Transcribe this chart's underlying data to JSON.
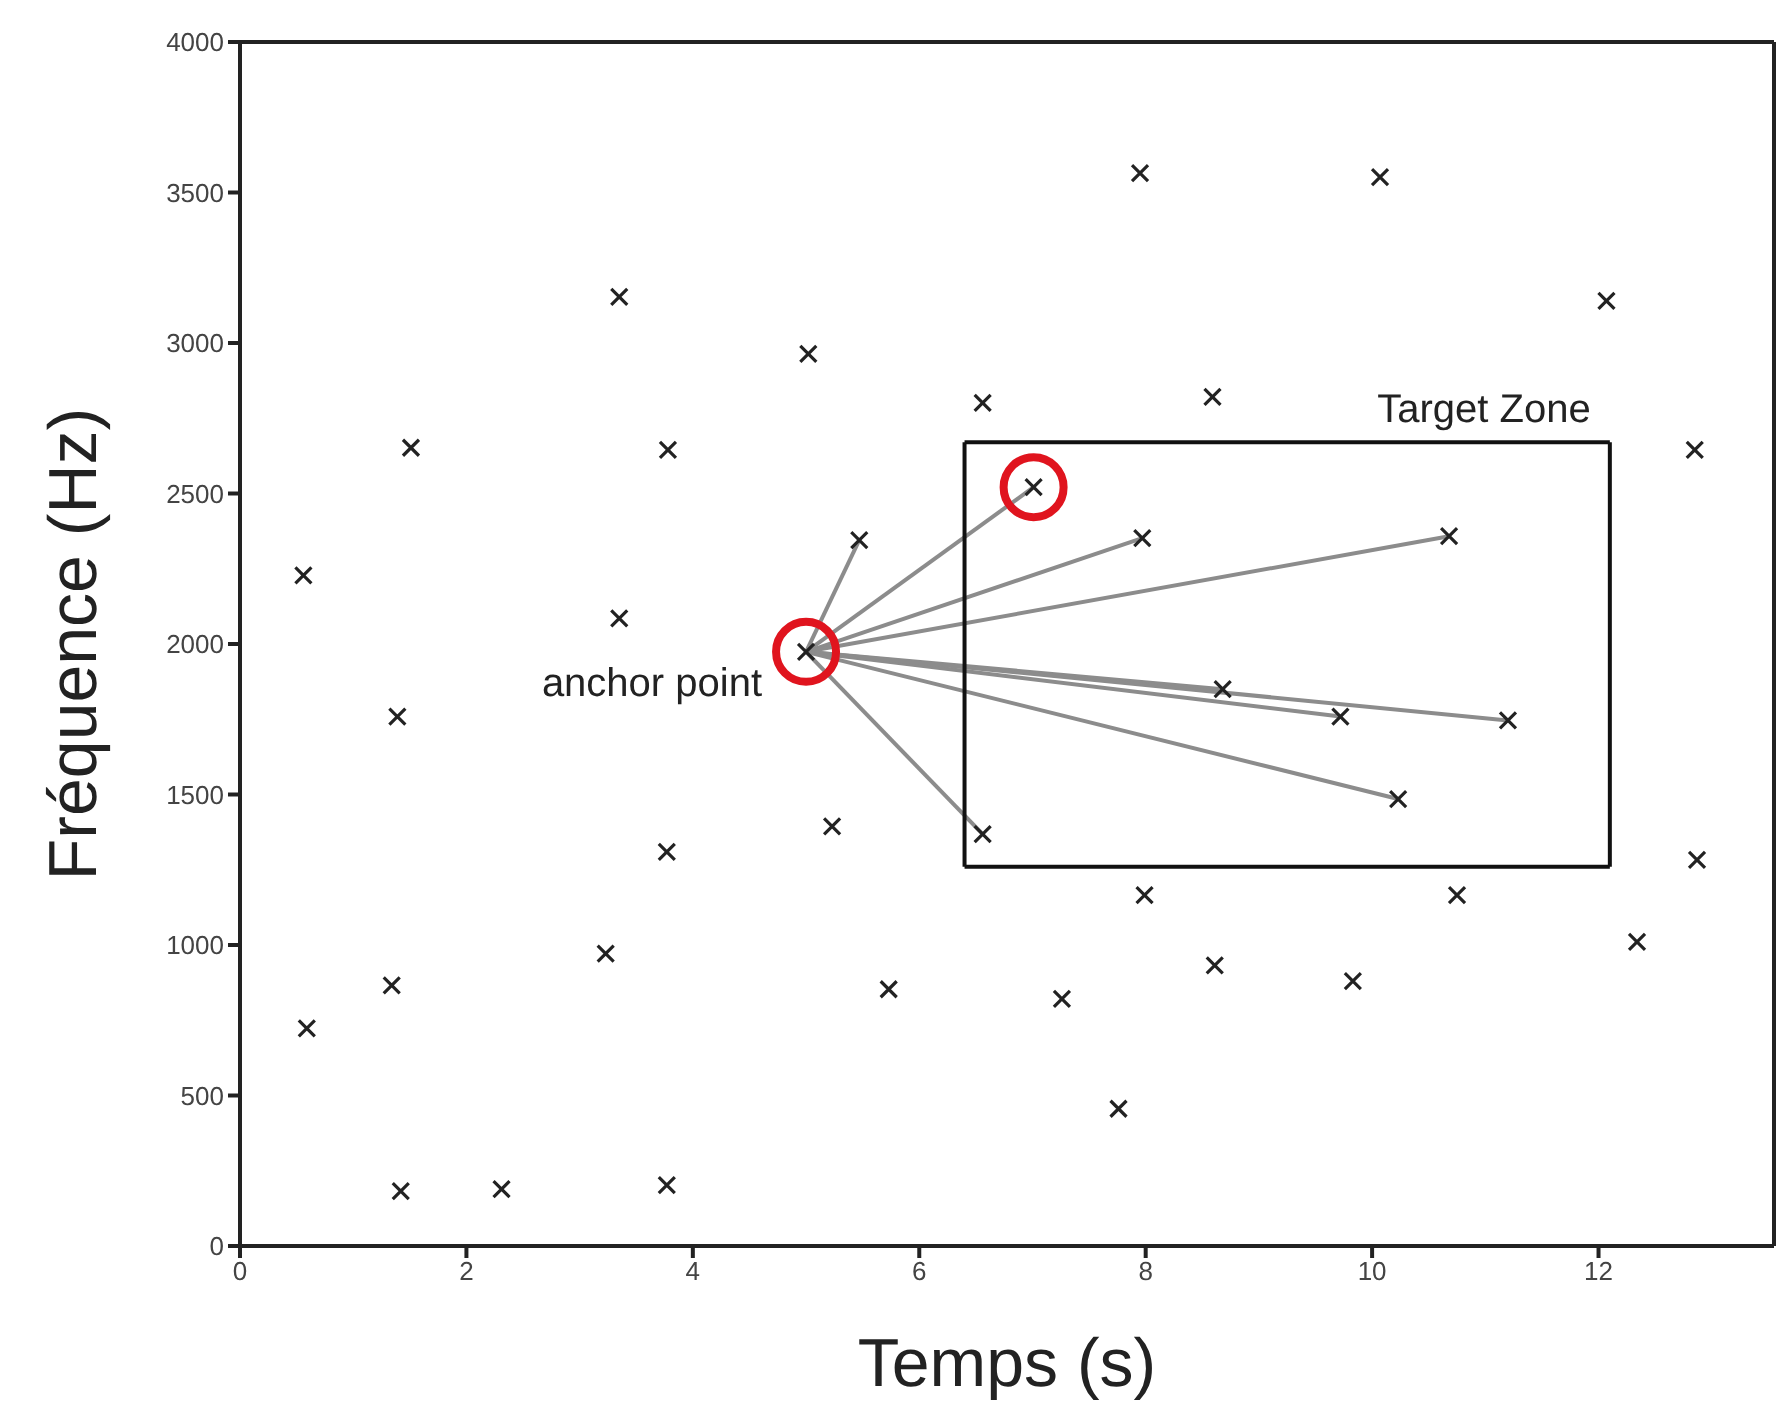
{
  "chart_data": {
    "type": "scatter",
    "xlabel": "Temps (s)",
    "ylabel": "Fréquence (Hz)",
    "xlim": [
      0,
      13.55
    ],
    "xticks": [
      0,
      2,
      4,
      6,
      8,
      10,
      12
    ],
    "ylim": [
      0,
      4000
    ],
    "yticks": [
      0,
      500,
      1000,
      1500,
      2000,
      2500,
      3000,
      3500,
      4000
    ],
    "grid": false,
    "legend": false,
    "annotations": [
      {
        "text": "anchor point",
        "x": 5,
        "y": 1974
      },
      "Target Zone"
    ],
    "series": [
      {
        "type": "line",
        "color": "#8c8c8c",
        "marker": "none",
        "line_style": "solid",
        "x": [
          5,
          5.47
        ],
        "values": [
          1974,
          2345
        ]
      },
      {
        "type": "line",
        "color": "#8c8c8c",
        "marker": "none",
        "line_style": "solid",
        "x": [
          5,
          7.01
        ],
        "values": [
          1974,
          2521
        ]
      },
      {
        "type": "line",
        "color": "#8c8c8c",
        "marker": "none",
        "line_style": "solid",
        "x": [
          5,
          7.97
        ],
        "values": [
          1974,
          2352
        ]
      },
      {
        "type": "line",
        "color": "#8c8c8c",
        "marker": "none",
        "line_style": "solid",
        "x": [
          5,
          10.68
        ],
        "values": [
          1974,
          2358
        ]
      },
      {
        "type": "line",
        "color": "#8c8c8c",
        "marker": "none",
        "line_style": "solid",
        "x": [
          5,
          8.68
        ],
        "values": [
          1974,
          1850
        ]
      },
      {
        "type": "line",
        "color": "#8c8c8c",
        "marker": "none",
        "line_style": "solid",
        "x": [
          5,
          9.72
        ],
        "values": [
          1974,
          1759
        ]
      },
      {
        "type": "line",
        "color": "#8c8c8c",
        "marker": "none",
        "line_style": "solid",
        "x": [
          5,
          11.2
        ],
        "values": [
          1974,
          1746
        ]
      },
      {
        "type": "line",
        "color": "#8c8c8c",
        "marker": "none",
        "line_style": "solid",
        "x": [
          5,
          10.23
        ],
        "values": [
          1974,
          1485
        ]
      },
      {
        "type": "line",
        "color": "#8c8c8c",
        "marker": "none",
        "line_style": "solid",
        "x": [
          5,
          6.56
        ],
        "values": [
          1974,
          1368
        ]
      },
      {
        "type": "line",
        "color": "#111111",
        "marker": "none",
        "line_style": "solid",
        "x": [
          6.4,
          12.1
        ],
        "values": [
          2670,
          2670
        ]
      },
      {
        "type": "line",
        "color": "#111111",
        "marker": "none",
        "line_style": "solid",
        "x": [
          12.1,
          12.1
        ],
        "values": [
          2670,
          1260
        ]
      },
      {
        "type": "line",
        "color": "#111111",
        "marker": "none",
        "line_style": "solid",
        "x": [
          12.1,
          6.4
        ],
        "values": [
          1260,
          1260
        ]
      },
      {
        "type": "line",
        "color": "#111111",
        "marker": "none",
        "line_style": "solid",
        "x": [
          6.4,
          6.4
        ],
        "values": [
          1260,
          2670
        ]
      },
      {
        "color": "#222222",
        "marker": "cross",
        "x": [
          0.56,
          0.59,
          1.51,
          1.39,
          1.34,
          1.42,
          2.31,
          3.23,
          3.35,
          3.35,
          3.78,
          3.77,
          3.77,
          5.02,
          5,
          5.47,
          5.23,
          5.73,
          6.56,
          6.56,
          7.01,
          7.26,
          7.97,
          7.95,
          7.99,
          7.76,
          8.59,
          8.61,
          8.68,
          9.72,
          9.83,
          10.07,
          10.68,
          10.23,
          10.75,
          11.2,
          12.07,
          12.34,
          12.85,
          12.87
        ],
        "values": [
          2228,
          723,
          2652,
          1759,
          866,
          182,
          189,
          971,
          3153,
          2085,
          2645,
          1309,
          202,
          2964,
          1974,
          2345,
          1394,
          853,
          2801,
          1368,
          2521,
          821,
          2352,
          3564,
          1166,
          456,
          2821,
          932,
          1850,
          1759,
          880,
          3551,
          2358,
          1485,
          1166,
          1746,
          3140,
          1010,
          2645,
          1283
        ]
      },
      {
        "type": "scatter",
        "color": "#e0141e",
        "marker": "circle",
        "x": [
          5,
          7.01
        ],
        "values": [
          1974,
          2521
        ]
      }
    ]
  }
}
